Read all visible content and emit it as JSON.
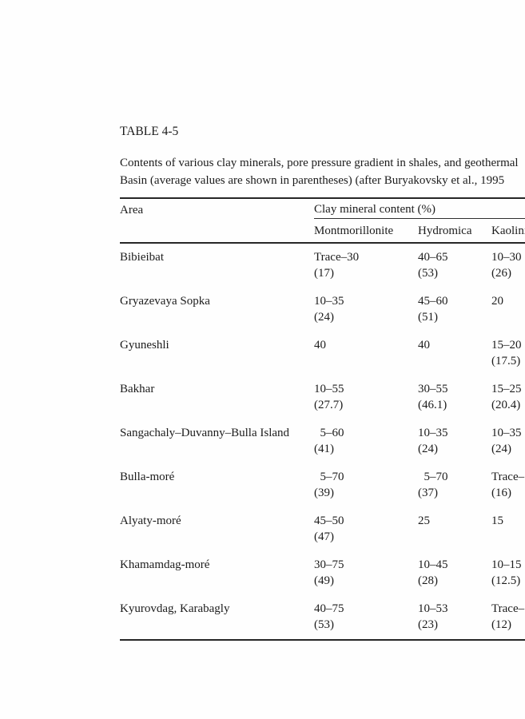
{
  "page": {
    "table_label": "TABLE 4-5",
    "caption_lines": [
      "Contents of various clay minerals, pore pressure gradient in shales, and geothermal",
      "Basin (average values are shown in parentheses) (after Buryakovsky et al., 1995"
    ]
  },
  "table": {
    "col_area": "Area",
    "group_header": "Clay mineral content (%)",
    "columns": [
      "Montmorillonite",
      "Hydromica",
      "Kaolinite"
    ],
    "rows": [
      {
        "area": "Bibieibat",
        "mont": [
          "Trace–30",
          "(17)"
        ],
        "hydro": [
          "40–65",
          "(53)"
        ],
        "kaolin": [
          "10–30",
          "(26)"
        ]
      },
      {
        "area": "Gryazevaya Sopka",
        "mont": [
          "10–35",
          "(24)"
        ],
        "hydro": [
          "45–60",
          "(51)"
        ],
        "kaolin": [
          "20",
          null
        ]
      },
      {
        "area": "Gyuneshli",
        "mont": [
          "40",
          null
        ],
        "hydro": [
          "40",
          null
        ],
        "kaolin": [
          "15–20",
          "(17.5)"
        ]
      },
      {
        "area": "Bakhar",
        "mont": [
          "10–55",
          "(27.7)"
        ],
        "hydro": [
          "30–55",
          "(46.1)"
        ],
        "kaolin": [
          "15–25",
          "(20.4)"
        ]
      },
      {
        "area": "Sangachaly–Duvanny–Bulla Island",
        "mont": [
          "  5–60",
          "(41)"
        ],
        "hydro": [
          "10–35",
          "(24)"
        ],
        "kaolin": [
          "10–35",
          "(24)"
        ]
      },
      {
        "area": "Bulla-moré",
        "mont": [
          "  5–70",
          "(39)"
        ],
        "hydro": [
          "  5–70",
          "(37)"
        ],
        "kaolin": [
          "Trace–",
          "(16)"
        ]
      },
      {
        "area": "Alyaty-moré",
        "mont": [
          "45–50",
          "(47)"
        ],
        "hydro": [
          "25",
          null
        ],
        "kaolin": [
          "15",
          null
        ]
      },
      {
        "area": "Khamamdag-moré",
        "mont": [
          "30–75",
          "(49)"
        ],
        "hydro": [
          "10–45",
          "(28)"
        ],
        "kaolin": [
          "10–15",
          "(12.5)"
        ]
      },
      {
        "area": "Kyurovdag, Karabagly",
        "mont": [
          "40–75",
          "(53)"
        ],
        "hydro": [
          "10–53",
          "(23)"
        ],
        "kaolin": [
          "Trace–",
          "(12)"
        ]
      }
    ]
  },
  "colors": {
    "background": "#fefefe",
    "text": "#1c1c1c",
    "rule": "#262626"
  }
}
